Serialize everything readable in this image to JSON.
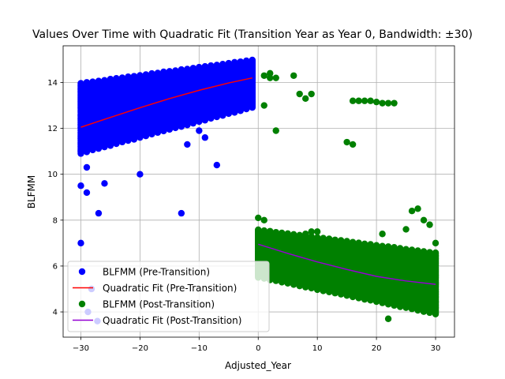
{
  "chart_data": {
    "type": "scatter",
    "title": "Values Over Time with Quadratic Fit (Transition Year as Year 0, Bandwidth: ±30)",
    "xlabel": "Adjusted_Year",
    "ylabel": "BLFMM",
    "xlim": [
      -33,
      33.2
    ],
    "ylim": [
      2.9,
      15.6
    ],
    "xticks": [
      -30,
      -20,
      -10,
      0,
      10,
      20,
      30
    ],
    "yticks": [
      4,
      6,
      8,
      10,
      12,
      14
    ],
    "grid": true,
    "legend_position": "lower-left",
    "series": [
      {
        "name": "BLFMM (Pre-Transition)",
        "kind": "scatter",
        "color": "#0000ff",
        "band": {
          "x_range": [
            -30,
            -1
          ],
          "lower_start": 10.9,
          "lower_end": 12.9,
          "upper_start": 14.0,
          "upper_end": 15.0
        },
        "outliers": [
          [
            -30,
            7.0
          ],
          [
            -30,
            9.5
          ],
          [
            -29,
            9.2
          ],
          [
            -27,
            8.3
          ],
          [
            -13,
            8.3
          ],
          [
            -7,
            10.4
          ],
          [
            -20,
            10.0
          ],
          [
            -29,
            10.3
          ],
          [
            -26,
            9.6
          ],
          [
            -9,
            11.6
          ],
          [
            -12,
            11.3
          ],
          [
            -10,
            11.9
          ],
          [
            -28.2,
            5.0
          ],
          [
            -28.8,
            4.0
          ],
          [
            -27.2,
            3.6
          ]
        ]
      },
      {
        "name": "Quadratic Fit (Pre-Transition)",
        "kind": "line",
        "color": "#ff0000",
        "x": [
          -30,
          -25,
          -20,
          -15,
          -10,
          -5,
          -1
        ],
        "y": [
          12.05,
          12.48,
          12.9,
          13.3,
          13.66,
          13.98,
          14.2
        ]
      },
      {
        "name": "BLFMM (Post-Transition)",
        "kind": "scatter",
        "color": "#008000",
        "band": {
          "x_range": [
            0,
            30
          ],
          "lower_start": 5.5,
          "lower_end": 3.9,
          "upper_start": 7.6,
          "upper_end": 6.6
        },
        "outliers": [
          [
            0,
            8.1
          ],
          [
            1,
            8.0
          ],
          [
            1,
            13.0
          ],
          [
            1,
            14.3
          ],
          [
            2,
            14.4
          ],
          [
            2,
            14.2
          ],
          [
            3,
            14.2
          ],
          [
            6,
            14.3
          ],
          [
            3,
            11.9
          ],
          [
            7,
            13.5
          ],
          [
            8,
            13.3
          ],
          [
            9,
            13.5
          ],
          [
            15,
            11.4
          ],
          [
            16,
            11.3
          ],
          [
            16,
            13.2
          ],
          [
            17,
            13.2
          ],
          [
            18,
            13.2
          ],
          [
            19,
            13.2
          ],
          [
            20,
            13.15
          ],
          [
            21,
            13.1
          ],
          [
            22,
            13.1
          ],
          [
            23,
            13.1
          ],
          [
            26,
            8.4
          ],
          [
            27,
            8.5
          ],
          [
            28,
            8.0
          ],
          [
            29,
            7.8
          ],
          [
            30,
            7.0
          ],
          [
            25,
            7.6
          ],
          [
            21,
            7.4
          ],
          [
            8,
            7.4
          ],
          [
            9,
            7.5
          ],
          [
            10,
            7.5
          ],
          [
            22,
            3.7
          ]
        ]
      },
      {
        "name": "Quadratic Fit (Post-Transition)",
        "kind": "line",
        "color": "#9400d3",
        "x": [
          0,
          5,
          10,
          15,
          20,
          25,
          30
        ],
        "y": [
          6.95,
          6.55,
          6.18,
          5.85,
          5.55,
          5.35,
          5.2
        ]
      }
    ]
  }
}
